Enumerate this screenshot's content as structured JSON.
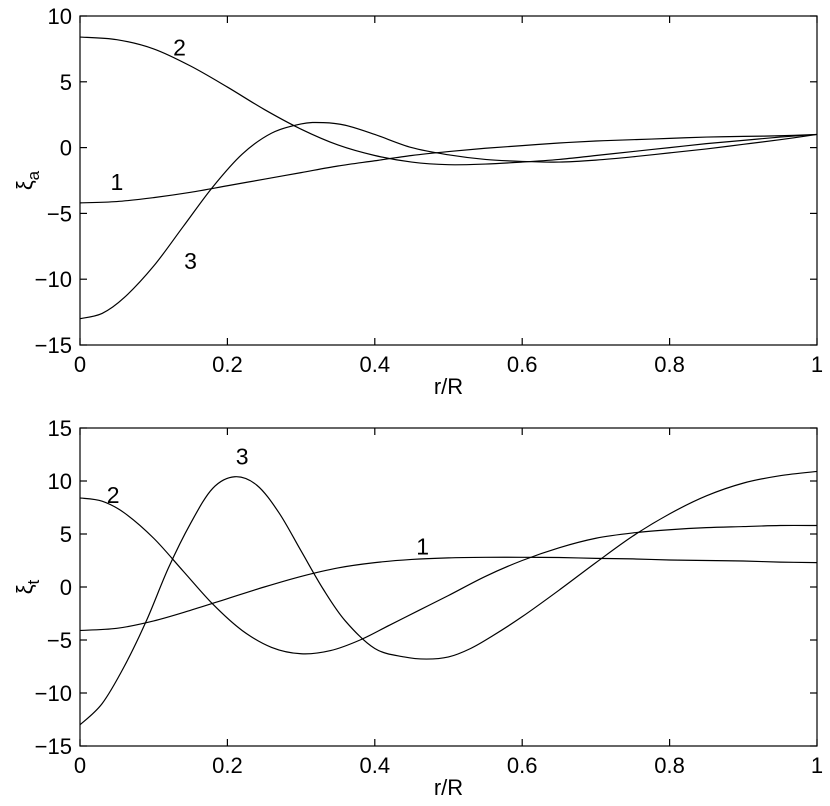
{
  "chart_data": [
    {
      "type": "line",
      "id": "top",
      "xlabel": "r/R",
      "ylabel": "ξ",
      "ylabel_sub": "a",
      "xlim": [
        0,
        1
      ],
      "ylim": [
        -15,
        10
      ],
      "xticks": [
        0,
        0.2,
        0.4,
        0.6,
        0.8,
        1
      ],
      "xtick_labels": [
        "0",
        "0.2",
        "0.4",
        "0.6",
        "0.8",
        "1"
      ],
      "yticks": [
        -15,
        -10,
        -5,
        0,
        5,
        10
      ],
      "ytick_labels": [
        "−15",
        "−10",
        "−5",
        "0",
        "5",
        "10"
      ],
      "grid": false,
      "series": [
        {
          "name": "1",
          "label_at": [
            0.05,
            -2.6
          ],
          "x": [
            0,
            0.05,
            0.1,
            0.15,
            0.2,
            0.25,
            0.3,
            0.35,
            0.4,
            0.45,
            0.5,
            0.55,
            0.6,
            0.65,
            0.7,
            0.75,
            0.8,
            0.85,
            0.9,
            0.95,
            1.0
          ],
          "y": [
            -4.2,
            -4.1,
            -3.8,
            -3.4,
            -2.9,
            -2.4,
            -1.9,
            -1.4,
            -1.0,
            -0.6,
            -0.3,
            -0.05,
            0.15,
            0.35,
            0.5,
            0.6,
            0.7,
            0.8,
            0.85,
            0.9,
            1.0
          ]
        },
        {
          "name": "2",
          "label_at": [
            0.135,
            7.6
          ],
          "x": [
            0,
            0.05,
            0.1,
            0.15,
            0.2,
            0.25,
            0.3,
            0.35,
            0.4,
            0.45,
            0.5,
            0.55,
            0.6,
            0.65,
            0.7,
            0.75,
            0.8,
            0.85,
            0.9,
            0.95,
            1.0
          ],
          "y": [
            8.4,
            8.2,
            7.5,
            6.2,
            4.6,
            2.9,
            1.4,
            0.2,
            -0.6,
            -1.1,
            -1.3,
            -1.25,
            -1.1,
            -0.9,
            -0.6,
            -0.3,
            0.0,
            0.3,
            0.55,
            0.8,
            1.0
          ]
        },
        {
          "name": "3",
          "label_at": [
            0.15,
            -8.6
          ],
          "x": [
            0,
            0.03,
            0.06,
            0.1,
            0.14,
            0.18,
            0.22,
            0.26,
            0.3,
            0.33,
            0.36,
            0.4,
            0.45,
            0.5,
            0.55,
            0.6,
            0.65,
            0.7,
            0.75,
            0.8,
            0.85,
            0.9,
            0.95,
            1.0
          ],
          "y": [
            -13.0,
            -12.6,
            -11.4,
            -9.0,
            -6.0,
            -3.0,
            -0.5,
            1.1,
            1.8,
            1.9,
            1.7,
            1.0,
            0.0,
            -0.55,
            -0.9,
            -1.05,
            -1.1,
            -0.95,
            -0.7,
            -0.4,
            -0.1,
            0.25,
            0.6,
            1.0
          ]
        }
      ]
    },
    {
      "type": "line",
      "id": "bottom",
      "xlabel": "r/R",
      "ylabel": "ξ",
      "ylabel_sub": "t",
      "xlim": [
        0,
        1
      ],
      "ylim": [
        -15,
        15
      ],
      "xticks": [
        0,
        0.2,
        0.4,
        0.6,
        0.8,
        1
      ],
      "xtick_labels": [
        "0",
        "0.2",
        "0.4",
        "0.6",
        "0.8",
        "1"
      ],
      "yticks": [
        -15,
        -10,
        -5,
        0,
        5,
        10,
        15
      ],
      "ytick_labels": [
        "−15",
        "−10",
        "−5",
        "0",
        "5",
        "10",
        "15"
      ],
      "grid": false,
      "series": [
        {
          "name": "1",
          "label_at": [
            0.465,
            3.8
          ],
          "x": [
            0,
            0.05,
            0.1,
            0.15,
            0.2,
            0.25,
            0.3,
            0.35,
            0.4,
            0.45,
            0.5,
            0.55,
            0.6,
            0.65,
            0.7,
            0.75,
            0.8,
            0.85,
            0.9,
            0.95,
            1.0
          ],
          "y": [
            -4.1,
            -3.9,
            -3.2,
            -2.2,
            -1.1,
            0.0,
            1.0,
            1.8,
            2.3,
            2.6,
            2.75,
            2.8,
            2.8,
            2.78,
            2.7,
            2.65,
            2.55,
            2.5,
            2.45,
            2.35,
            2.3
          ]
        },
        {
          "name": "2",
          "label_at": [
            0.045,
            8.7
          ],
          "x": [
            0,
            0.03,
            0.06,
            0.1,
            0.14,
            0.18,
            0.22,
            0.26,
            0.3,
            0.34,
            0.38,
            0.42,
            0.46,
            0.5,
            0.55,
            0.6,
            0.65,
            0.7,
            0.75,
            0.8,
            0.85,
            0.9,
            0.95,
            1.0
          ],
          "y": [
            8.4,
            8.1,
            7.0,
            4.6,
            1.5,
            -1.6,
            -4.1,
            -5.7,
            -6.3,
            -6.0,
            -5.0,
            -3.6,
            -2.2,
            -0.8,
            1.0,
            2.5,
            3.7,
            4.6,
            5.1,
            5.4,
            5.6,
            5.7,
            5.8,
            5.8
          ]
        },
        {
          "name": "3",
          "label_at": [
            0.22,
            12.3
          ],
          "x": [
            0,
            0.03,
            0.06,
            0.09,
            0.12,
            0.15,
            0.18,
            0.21,
            0.24,
            0.27,
            0.3,
            0.33,
            0.36,
            0.4,
            0.44,
            0.47,
            0.5,
            0.53,
            0.56,
            0.6,
            0.65,
            0.7,
            0.75,
            0.8,
            0.85,
            0.9,
            0.95,
            1.0
          ],
          "y": [
            -13.0,
            -11.0,
            -7.5,
            -3.2,
            1.8,
            6.0,
            9.3,
            10.4,
            9.6,
            7.0,
            3.4,
            -0.2,
            -3.2,
            -5.8,
            -6.6,
            -6.8,
            -6.6,
            -5.8,
            -4.6,
            -2.8,
            -0.3,
            2.3,
            4.8,
            6.9,
            8.6,
            9.8,
            10.5,
            10.9
          ]
        }
      ]
    }
  ]
}
